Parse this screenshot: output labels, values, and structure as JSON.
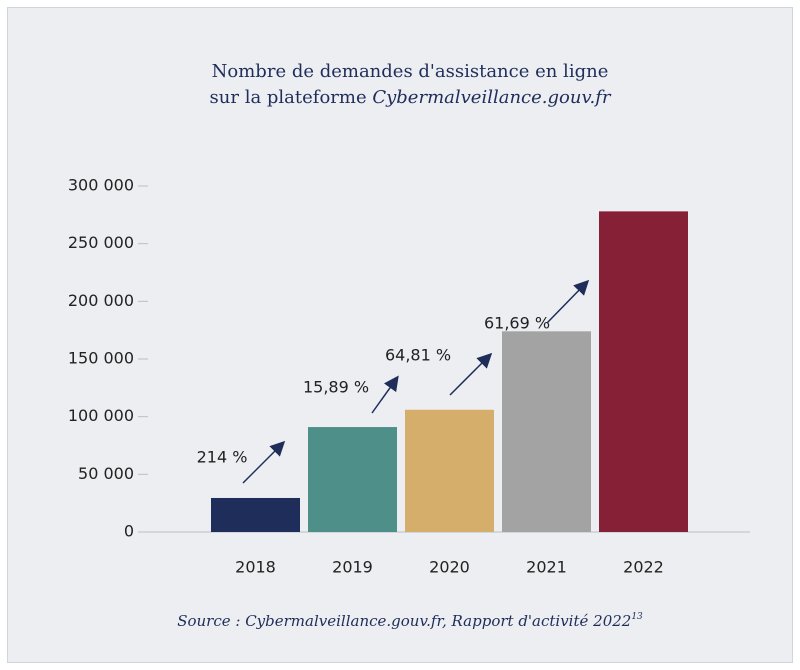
{
  "chart_data": {
    "type": "bar",
    "title": [
      "Nombre de demandes d'assistance en ligne",
      "sur la plateforme ",
      "Cybermalveillance.gouv.fr"
    ],
    "categories": [
      "2018",
      "2019",
      "2020",
      "2021",
      "2022"
    ],
    "values": [
      29500,
      91000,
      106000,
      174000,
      278000
    ],
    "colors": [
      "#1f2d5a",
      "#4f8f89",
      "#d4ae6a",
      "#a3a3a3",
      "#862036"
    ],
    "ylim": [
      0,
      300000
    ],
    "yticks": [
      0,
      {
        "value": 50000,
        "label": "50 000"
      },
      {
        "value": 100000,
        "label": "100 000"
      },
      {
        "value": 150000,
        "label": "150 000"
      },
      {
        "value": 200000,
        "label": "200 000"
      },
      {
        "value": 250000,
        "label": "250 000"
      },
      {
        "value": 300000,
        "label": "300 000"
      }
    ],
    "annotations": [
      "214 %",
      "15,89 %",
      "64,81 %",
      "61,69 %"
    ],
    "source": "Source : Cybermalveillance.gouv.fr, Rapport d'activité 2022",
    "source_note": "13"
  }
}
